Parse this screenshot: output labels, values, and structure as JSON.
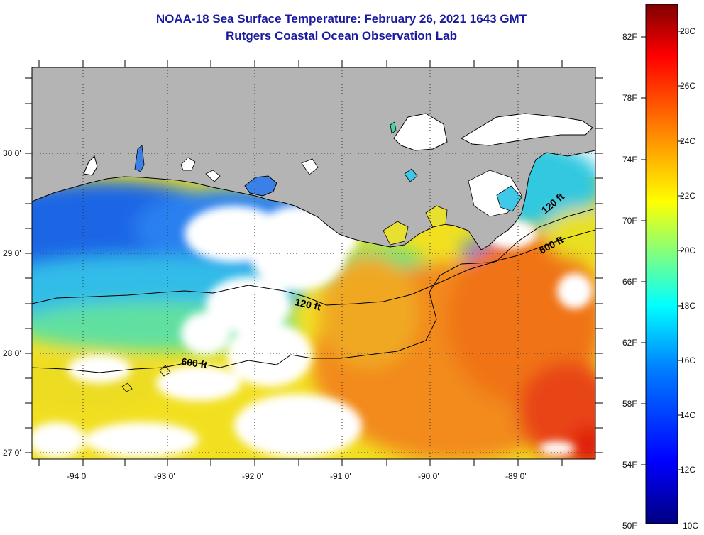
{
  "title_line1": "NOAA-18 Sea Surface Temperature:  February 26, 2021 1643 GMT",
  "title_line2": "Rutgers Coastal Ocean Observation Lab",
  "map": {
    "lat_labels": [
      "30 0'",
      "29 0'",
      "28 0'",
      "27 0'"
    ],
    "lon_labels": [
      "-94 0'",
      "-93 0'",
      "-92 0'",
      "-91 0'",
      "-90 0'",
      "-89 0'"
    ],
    "isobath_labels": {
      "shelf_120_west": "120 ft",
      "shelf_600_west": "600 ft",
      "shelf_120_east": "120 ft",
      "shelf_600_east": "600 ft"
    }
  },
  "colorbar": {
    "fahrenheit_labels": [
      "82F",
      "78F",
      "74F",
      "70F",
      "66F",
      "62F",
      "58F",
      "54F",
      "50F"
    ],
    "celsius_labels": [
      "28C",
      "26C",
      "24C",
      "22C",
      "20C",
      "18C",
      "16C",
      "14C",
      "12C",
      "10C"
    ],
    "colors": [
      "#000080",
      "#0000ff",
      "#0080ff",
      "#00ffff",
      "#80ff80",
      "#ffff00",
      "#ff8000",
      "#ff0000",
      "#800000"
    ]
  },
  "colors": {
    "land": "#b4b4b4",
    "cloud": "#ffffff",
    "title": "#1a1aa0"
  }
}
